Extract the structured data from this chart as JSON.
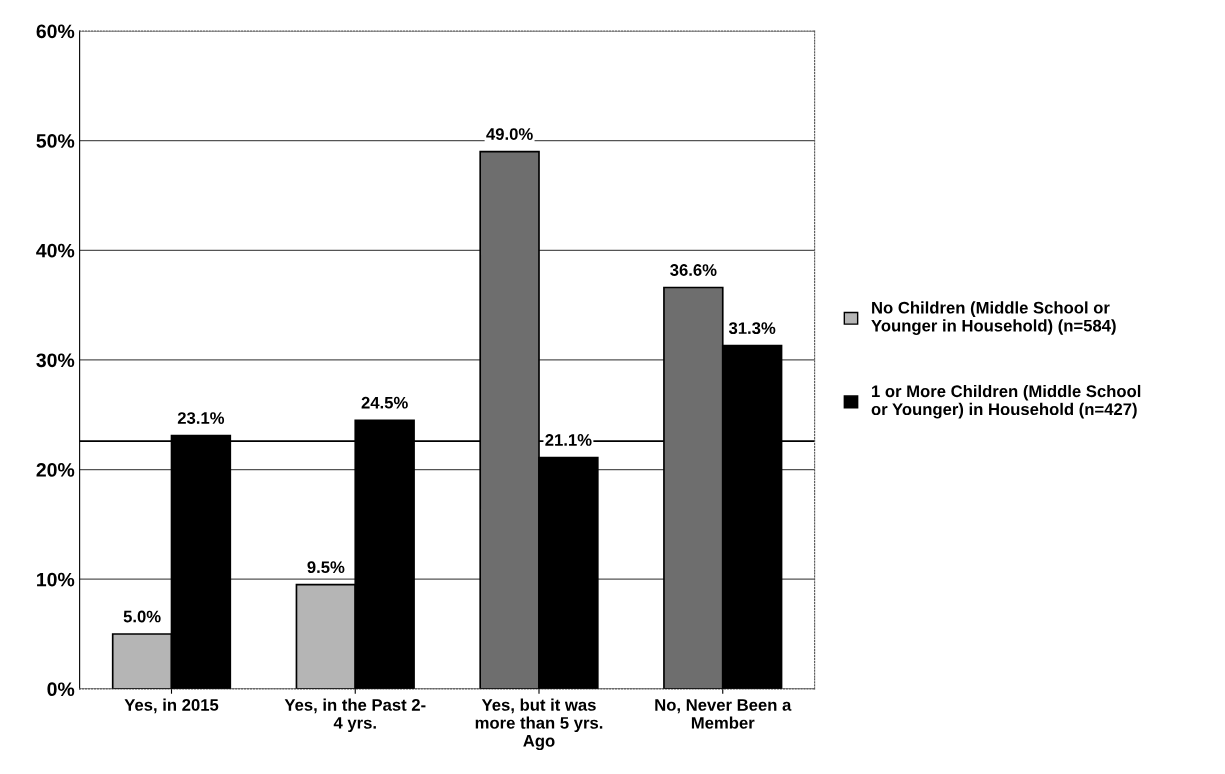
{
  "chart_data": {
    "type": "bar",
    "categories": [
      "Yes, in 2015",
      "Yes, in the Past 2-\n4 yrs.",
      "Yes, but it was\nmore than 5 yrs.\nAgo",
      "No, Never Been a\nMember"
    ],
    "series": [
      {
        "name": "No Children (Middle School or\nYounger in Household) (n=584)",
        "color": "#b5b5b5",
        "colors": [
          "#b5b5b5",
          "#b5b5b5",
          "#6e6e6e",
          "#6e6e6e"
        ],
        "values": [
          5.0,
          9.5,
          49.0,
          36.6
        ],
        "value_labels": [
          "5.0%",
          "9.5%",
          "49.0%",
          "36.6%"
        ]
      },
      {
        "name": "1 or More Children (Middle School\nor Younger) in Household (n=427)",
        "color": "#000000",
        "values": [
          23.1,
          24.5,
          21.1,
          31.3
        ],
        "value_labels": [
          "23.1%",
          "24.5%",
          "21.1%",
          "31.3%"
        ]
      }
    ],
    "ylim": [
      0,
      60
    ],
    "yticks": [
      {
        "value": 0,
        "label": "0%"
      },
      {
        "value": 10,
        "label": "10%"
      },
      {
        "value": 20,
        "label": "20%"
      },
      {
        "value": 30,
        "label": "30%"
      },
      {
        "value": 40,
        "label": "40%"
      },
      {
        "value": 50,
        "label": "50%"
      },
      {
        "value": 60,
        "label": "60%"
      }
    ],
    "ref_lines": [
      {
        "axis": "y",
        "value": 22.6,
        "color": "#000000"
      }
    ],
    "grid": "y",
    "legend": "right"
  }
}
